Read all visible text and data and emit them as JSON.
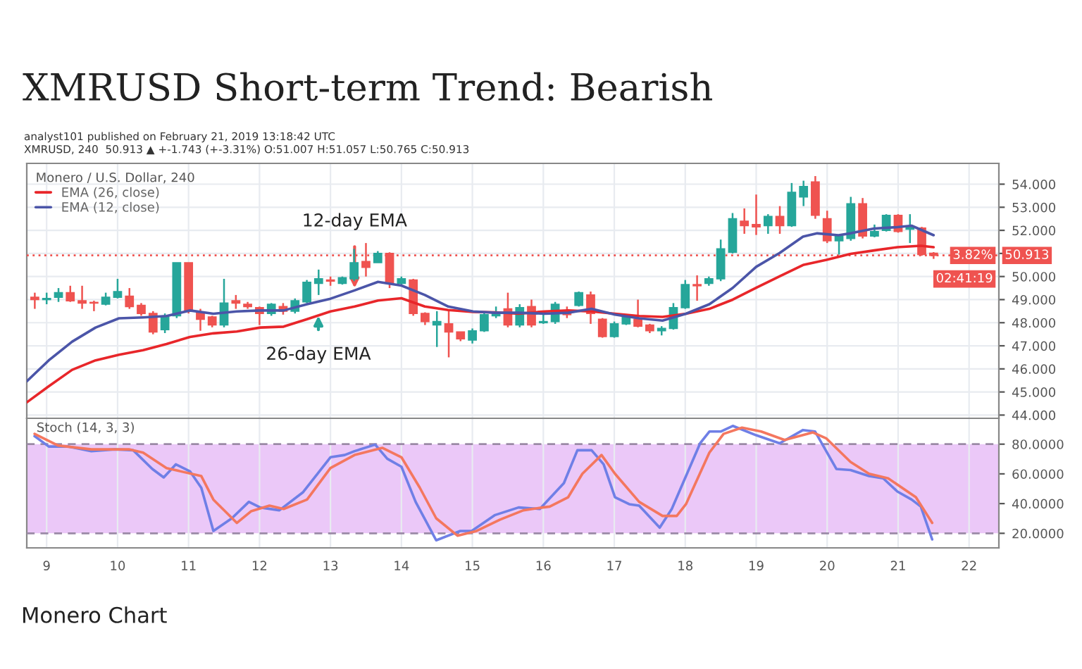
{
  "chart_data": [
    {
      "type": "candlestick",
      "title": "XMRUSD Short-term Trend: Bearish",
      "subtitle": "analyst101 published on February 21, 2019 13:18:42 UTC\nXMRUSD, 240  50.913 ▲ +-1.743 (+-3.31%) O:51.007 H:51.057 L:50.765 C:50.913",
      "legend_title": "Monero / U.S. Dollar, 240",
      "legend": "top left",
      "grid": true,
      "tick_labels": "y",
      "xlim": [
        8.72,
        22.42
      ],
      "xticks": [
        9,
        10,
        11,
        12,
        13,
        14,
        15,
        16,
        17,
        18,
        19,
        20,
        21,
        22
      ],
      "ylim": [
        43.86,
        54.9
      ],
      "yticks": [
        {
          "value": 44,
          "label": "44.000"
        },
        {
          "value": 45,
          "label": "45.000"
        },
        {
          "value": 46,
          "label": "46.000"
        },
        {
          "value": 47,
          "label": "47.000"
        },
        {
          "value": 48,
          "label": "48.000"
        },
        {
          "value": 49,
          "label": "49.000"
        },
        {
          "value": 50,
          "label": "50.000"
        },
        {
          "value": 51,
          "label": null
        },
        {
          "value": 52,
          "label": "52.000"
        },
        {
          "value": 53,
          "label": "53.000"
        },
        {
          "value": 54,
          "label": "54.000"
        }
      ],
      "x": [
        8.833,
        9,
        9.167,
        9.333,
        9.5,
        9.667,
        9.833,
        10,
        10.167,
        10.333,
        10.5,
        10.667,
        10.833,
        11,
        11.167,
        11.333,
        11.5,
        11.667,
        11.833,
        12,
        12.167,
        12.333,
        12.5,
        12.667,
        12.833,
        13,
        13.167,
        13.333,
        13.5,
        13.667,
        13.833,
        14,
        14.167,
        14.333,
        14.5,
        14.667,
        14.833,
        15,
        15.167,
        15.333,
        15.5,
        15.667,
        15.833,
        16,
        16.167,
        16.333,
        16.5,
        16.667,
        16.833,
        17,
        17.167,
        17.333,
        17.5,
        17.667,
        17.833,
        18,
        18.167,
        18.333,
        18.5,
        18.667,
        18.833,
        19,
        19.167,
        19.333,
        19.5,
        19.667,
        19.833,
        20,
        20.167,
        20.333,
        20.5,
        20.667,
        20.833,
        21,
        21.167,
        21.333,
        21.5
      ],
      "ohlc": [
        [
          49.1,
          49.3,
          48.6,
          49.0
        ],
        [
          49.0,
          49.3,
          48.8,
          49.05
        ],
        [
          49.1,
          49.5,
          48.9,
          49.3
        ],
        [
          49.3,
          49.6,
          48.9,
          48.95
        ],
        [
          48.95,
          49.6,
          48.6,
          48.85
        ],
        [
          48.88,
          48.95,
          48.5,
          48.85
        ],
        [
          48.8,
          49.3,
          48.75,
          49.1
        ],
        [
          49.1,
          49.9,
          49.05,
          49.35
        ],
        [
          49.15,
          49.5,
          48.6,
          48.7
        ],
        [
          48.75,
          48.85,
          48.3,
          48.4
        ],
        [
          48.4,
          48.5,
          47.5,
          47.6
        ],
        [
          47.7,
          48.4,
          47.55,
          48.25
        ],
        [
          48.3,
          50.6,
          48.2,
          50.6
        ],
        [
          50.6,
          50.6,
          48.4,
          48.5
        ],
        [
          48.45,
          48.6,
          47.65,
          48.15
        ],
        [
          48.25,
          48.3,
          47.8,
          47.9
        ],
        [
          47.9,
          49.9,
          47.8,
          48.85
        ],
        [
          48.95,
          49.2,
          48.6,
          48.85
        ],
        [
          48.8,
          48.9,
          48.6,
          48.7
        ],
        [
          48.65,
          48.7,
          47.9,
          48.4
        ],
        [
          48.4,
          48.85,
          48.3,
          48.8
        ],
        [
          48.7,
          48.85,
          48.35,
          48.5
        ],
        [
          48.5,
          49.05,
          48.4,
          48.95
        ],
        [
          48.9,
          49.85,
          48.85,
          49.75
        ],
        [
          49.7,
          50.3,
          49.2,
          49.9
        ],
        [
          49.85,
          50.0,
          49.6,
          49.8
        ],
        [
          49.7,
          50.0,
          49.65,
          49.95
        ],
        [
          49.9,
          51.2,
          49.8,
          50.6
        ],
        [
          50.65,
          51.45,
          50.0,
          50.4
        ],
        [
          50.6,
          51.1,
          50.6,
          51.0
        ],
        [
          51.0,
          51.05,
          49.5,
          49.7
        ],
        [
          49.7,
          50.0,
          49.6,
          49.9
        ],
        [
          49.85,
          49.9,
          48.3,
          48.4
        ],
        [
          48.4,
          48.45,
          47.9,
          48.05
        ],
        [
          47.9,
          48.5,
          46.95,
          48.05
        ],
        [
          47.95,
          48.55,
          46.5,
          47.6
        ],
        [
          47.6,
          47.6,
          47.2,
          47.3
        ],
        [
          47.25,
          47.75,
          47.1,
          47.65
        ],
        [
          47.65,
          48.45,
          47.6,
          48.35
        ],
        [
          48.3,
          48.7,
          48.2,
          48.4
        ],
        [
          48.6,
          49.3,
          47.8,
          47.9
        ],
        [
          47.9,
          48.8,
          47.8,
          48.65
        ],
        [
          48.7,
          49.0,
          47.8,
          47.9
        ],
        [
          48.0,
          48.4,
          47.95,
          48.05
        ],
        [
          48.05,
          48.9,
          47.95,
          48.8
        ],
        [
          48.4,
          48.7,
          48.2,
          48.35
        ],
        [
          48.75,
          49.35,
          48.7,
          49.3
        ],
        [
          49.2,
          49.35,
          47.95,
          48.4
        ],
        [
          48.15,
          48.2,
          47.35,
          47.4
        ],
        [
          47.4,
          48.05,
          47.35,
          47.95
        ],
        [
          47.95,
          48.35,
          47.9,
          48.25
        ],
        [
          48.15,
          49.0,
          47.8,
          47.85
        ],
        [
          47.9,
          47.95,
          47.55,
          47.65
        ],
        [
          47.65,
          47.85,
          47.45,
          47.75
        ],
        [
          47.75,
          48.85,
          47.7,
          48.65
        ],
        [
          48.65,
          49.85,
          48.6,
          49.65
        ],
        [
          49.65,
          50.05,
          48.95,
          49.6
        ],
        [
          49.7,
          50.0,
          49.6,
          49.9
        ],
        [
          49.9,
          51.6,
          49.8,
          51.2
        ],
        [
          51.05,
          52.75,
          51.0,
          52.5
        ],
        [
          52.4,
          52.95,
          51.85,
          52.2
        ],
        [
          52.25,
          53.55,
          51.8,
          52.15
        ],
        [
          52.2,
          52.7,
          51.85,
          52.6
        ],
        [
          52.6,
          53.05,
          51.85,
          52.2
        ],
        [
          52.2,
          54.05,
          52.15,
          53.65
        ],
        [
          53.45,
          54.15,
          53.05,
          53.9
        ],
        [
          54.1,
          54.35,
          52.5,
          52.65
        ],
        [
          52.5,
          52.85,
          51.45,
          51.55
        ],
        [
          51.55,
          51.8,
          50.95,
          51.75
        ],
        [
          51.65,
          53.45,
          51.55,
          53.15
        ],
        [
          53.15,
          53.4,
          51.65,
          51.75
        ],
        [
          51.75,
          52.25,
          51.7,
          51.95
        ],
        [
          52.0,
          52.7,
          51.95,
          52.65
        ],
        [
          52.65,
          52.7,
          51.9,
          51.95
        ],
        [
          52.05,
          52.7,
          51.45,
          52.15
        ],
        [
          52.1,
          52.15,
          50.9,
          50.95
        ],
        [
          51.007,
          51.057,
          50.765,
          50.913
        ]
      ],
      "colors": [
        "#ef5350",
        "#26a69a",
        "#26a69a",
        "#ef5350",
        "#ef5350",
        "#ef5350",
        "#26a69a",
        "#26a69a",
        "#ef5350",
        "#ef5350",
        "#ef5350",
        "#26a69a",
        "#26a69a",
        "#ef5350",
        "#ef5350",
        "#ef5350",
        "#26a69a",
        "#ef5350",
        "#ef5350",
        "#ef5350",
        "#26a69a",
        "#ef5350",
        "#26a69a",
        "#26a69a",
        "#26a69a",
        "#ef5350",
        "#26a69a",
        "#26a69a",
        "#ef5350",
        "#26a69a",
        "#ef5350",
        "#26a69a",
        "#ef5350",
        "#ef5350",
        "#26a69a",
        "#ef5350",
        "#ef5350",
        "#26a69a",
        "#26a69a",
        "#26a69a",
        "#ef5350",
        "#26a69a",
        "#ef5350",
        "#26a69a",
        "#26a69a",
        "#ef5350",
        "#26a69a",
        "#ef5350",
        "#ef5350",
        "#26a69a",
        "#26a69a",
        "#ef5350",
        "#ef5350",
        "#26a69a",
        "#26a69a",
        "#26a69a",
        "#ef5350",
        "#26a69a",
        "#26a69a",
        "#26a69a",
        "#ef5350",
        "#ef5350",
        "#26a69a",
        "#ef5350",
        "#26a69a",
        "#26a69a",
        "#ef5350",
        "#ef5350",
        "#26a69a",
        "#26a69a",
        "#ef5350",
        "#26a69a",
        "#26a69a",
        "#ef5350",
        "#26a69a",
        "#ef5350",
        "#ef5350"
      ],
      "series": [
        {
          "type": "line",
          "name": "EMA (26, close)",
          "color": "#e8262a",
          "x": [
            8.72,
            9.03,
            9.36,
            9.69,
            10.02,
            10.36,
            10.69,
            11.02,
            11.35,
            11.68,
            12.01,
            12.34,
            12.67,
            13.0,
            13.34,
            13.67,
            14.0,
            14.33,
            14.66,
            15.01,
            15.32,
            15.65,
            16.02,
            16.35,
            16.68,
            17.01,
            17.35,
            17.68,
            18.01,
            18.34,
            18.67,
            19.0,
            19.33,
            19.66,
            19.99,
            20.33,
            20.66,
            20.99,
            21.32,
            21.5
          ],
          "values": [
            44.55,
            45.25,
            45.96,
            46.37,
            46.61,
            46.81,
            47.08,
            47.38,
            47.54,
            47.62,
            47.79,
            47.83,
            48.15,
            48.49,
            48.7,
            48.96,
            49.06,
            48.7,
            48.55,
            48.47,
            48.45,
            48.39,
            48.49,
            48.53,
            48.49,
            48.39,
            48.29,
            48.25,
            48.39,
            48.6,
            49.0,
            49.51,
            50.01,
            50.5,
            50.72,
            50.98,
            51.13,
            51.27,
            51.33,
            51.27
          ]
        },
        {
          "type": "line",
          "name": "EMA (12, close)",
          "color": "#4b55a8",
          "x": [
            8.72,
            9.03,
            9.36,
            9.69,
            10.02,
            10.36,
            10.69,
            11.02,
            11.35,
            11.68,
            12.01,
            12.34,
            12.67,
            13.0,
            13.34,
            13.67,
            14.0,
            14.33,
            14.66,
            15.01,
            15.32,
            15.65,
            16.02,
            16.35,
            16.68,
            17.01,
            17.35,
            17.68,
            18.01,
            18.34,
            18.67,
            19.0,
            19.33,
            19.66,
            19.86,
            20.16,
            20.33,
            20.66,
            20.99,
            21.19,
            21.5
          ],
          "values": [
            45.46,
            46.37,
            47.18,
            47.79,
            48.19,
            48.23,
            48.29,
            48.53,
            48.39,
            48.49,
            48.53,
            48.53,
            48.8,
            49.04,
            49.4,
            49.77,
            49.61,
            49.2,
            48.7,
            48.49,
            48.43,
            48.43,
            48.39,
            48.43,
            48.6,
            48.35,
            48.19,
            48.09,
            48.39,
            48.8,
            49.51,
            50.42,
            51.02,
            51.73,
            51.87,
            51.79,
            51.87,
            52.08,
            52.14,
            52.2,
            51.79
          ]
        }
      ],
      "ref_lines": [
        {
          "axis": "y",
          "value": 50.913,
          "label": "50.913",
          "color": "#ef5350",
          "line_style": "dotted"
        }
      ],
      "annotations": [
        {
          "text": "12-day EMA",
          "x": 13.34,
          "y": 49.5
        },
        {
          "text": "26-day EMA",
          "x": 12.83,
          "y": 48.3
        },
        "3.82%",
        "02:41:19"
      ]
    },
    {
      "type": "line",
      "legend_title": "Stoch (14, 3, 3)",
      "grid": "x",
      "xlim": [
        8.72,
        22.42
      ],
      "xticks": [
        9,
        10,
        11,
        12,
        13,
        14,
        15,
        16,
        17,
        18,
        19,
        20,
        21,
        22
      ],
      "ylim": [
        10.2,
        97.4
      ],
      "yticks": [
        {
          "value": 20,
          "label": "20.0000"
        },
        {
          "value": 40,
          "label": "40.0000"
        },
        {
          "value": 60,
          "label": "60.0000"
        },
        {
          "value": 80,
          "label": "80.0000"
        }
      ],
      "series": [
        {
          "color": "#6f7fe6",
          "x": [
            8.83,
            9.03,
            9.3,
            9.63,
            9.96,
            10.22,
            10.49,
            10.65,
            10.82,
            11.02,
            11.18,
            11.35,
            11.61,
            11.85,
            12.01,
            12.28,
            12.61,
            13.0,
            13.2,
            13.34,
            13.63,
            13.8,
            14.0,
            14.2,
            14.49,
            14.83,
            14.99,
            15.32,
            15.65,
            15.95,
            16.29,
            16.48,
            16.68,
            16.85,
            17.01,
            17.21,
            17.35,
            17.64,
            17.81,
            18.21,
            18.34,
            18.5,
            18.67,
            19.0,
            19.33,
            19.66,
            19.83,
            20.13,
            20.33,
            20.59,
            20.79,
            20.99,
            21.19,
            21.32,
            21.48
          ],
          "values": [
            85.4,
            78.4,
            78.4,
            75.3,
            76.5,
            75.9,
            63.3,
            57.6,
            66.4,
            61.7,
            50.6,
            21.6,
            30.1,
            41.2,
            37.4,
            35.5,
            47.5,
            71.2,
            72.7,
            75.3,
            79.7,
            70.2,
            64.8,
            41.2,
            15.3,
            21.6,
            21.6,
            32.3,
            37.4,
            36.4,
            53.8,
            75.9,
            75.9,
            66.4,
            44.3,
            39.6,
            38.6,
            23.8,
            36.4,
            80.6,
            88.5,
            88.5,
            92.3,
            86.0,
            80.6,
            89.5,
            88.5,
            63.3,
            62.6,
            58.5,
            57.0,
            48.1,
            42.7,
            38.0,
            15.9
          ]
        },
        {
          "color": "#f4775f",
          "x": [
            8.83,
            9.16,
            9.63,
            10.16,
            10.36,
            10.69,
            11.18,
            11.35,
            11.68,
            11.88,
            12.14,
            12.34,
            12.67,
            13.0,
            13.34,
            13.73,
            14.0,
            14.26,
            14.49,
            14.79,
            15.06,
            15.39,
            15.72,
            15.99,
            16.09,
            16.35,
            16.55,
            16.82,
            17.01,
            17.35,
            17.68,
            17.88,
            18.01,
            18.34,
            18.54,
            18.8,
            19.07,
            19.4,
            19.8,
            19.99,
            20.33,
            20.59,
            20.86,
            21.25,
            21.48
          ],
          "values": [
            86.9,
            79.1,
            76.5,
            76.5,
            74.3,
            63.9,
            58.5,
            42.7,
            27.0,
            34.8,
            38.6,
            36.4,
            42.7,
            63.9,
            72.7,
            77.5,
            71.2,
            50.6,
            30.1,
            18.4,
            21.6,
            29.2,
            35.5,
            37.4,
            38.0,
            44.3,
            60.1,
            72.7,
            60.1,
            41.2,
            31.7,
            31.7,
            39.6,
            74.3,
            86.9,
            91.1,
            88.5,
            82.8,
            87.9,
            83.8,
            68.0,
            60.1,
            57.0,
            44.3,
            27.0
          ]
        }
      ],
      "bands": [
        {
          "axis": "y",
          "from": 20,
          "to": 80,
          "color": "#ebc8f8"
        }
      ],
      "ref_lines": [
        {
          "axis": "y",
          "value": 20,
          "color": "#9b8aa6",
          "line_style": "dashed"
        },
        {
          "axis": "y",
          "value": 80,
          "color": "#9b8aa6",
          "line_style": "dashed"
        }
      ],
      "annotations": [
        "Monero Chart"
      ]
    }
  ]
}
